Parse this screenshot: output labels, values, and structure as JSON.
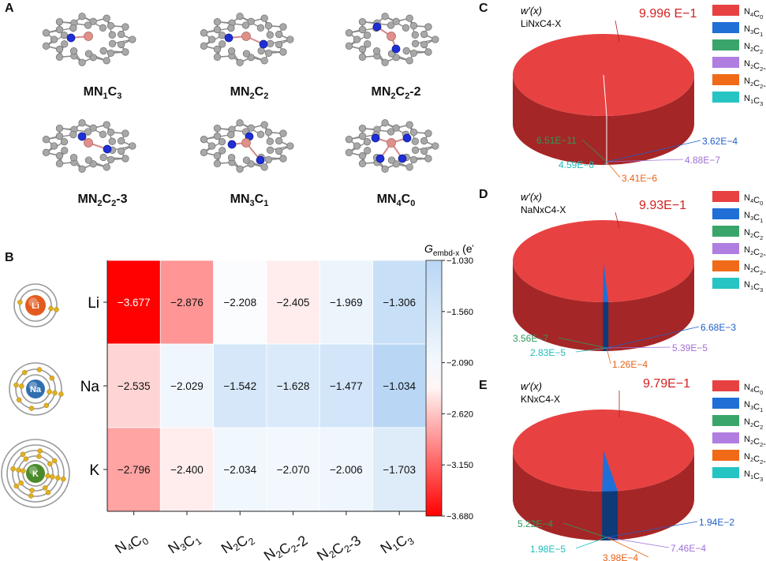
{
  "panels": {
    "a": "A",
    "b": "B",
    "c": "C",
    "d": "D",
    "e": "E"
  },
  "structures": [
    {
      "base": "MN",
      "n": "1",
      "c": "C",
      "cn": "3",
      "suffix": ""
    },
    {
      "base": "MN",
      "n": "2",
      "c": "C",
      "cn": "2",
      "suffix": ""
    },
    {
      "base": "MN",
      "n": "2",
      "c": "C",
      "cn": "2",
      "suffix": "-2"
    },
    {
      "base": "MN",
      "n": "2",
      "c": "C",
      "cn": "2",
      "suffix": "-3"
    },
    {
      "base": "MN",
      "n": "3",
      "c": "C",
      "cn": "1",
      "suffix": ""
    },
    {
      "base": "MN",
      "n": "4",
      "c": "C",
      "cn": "0",
      "suffix": ""
    }
  ],
  "atoms": [
    {
      "symbol": "Li",
      "color": "#e35a1e"
    },
    {
      "symbol": "Na",
      "color": "#2f6fb0"
    },
    {
      "symbol": "K",
      "color": "#4a8a2a"
    }
  ],
  "heatmap": {
    "colorbar_title": "G",
    "colorbar_sub": "embd-x",
    "colorbar_unit": " (eV)",
    "colorbar_ticks": [
      "−1.030",
      "−1.560",
      "−2.090",
      "−2.620",
      "−3.150",
      "−3.680"
    ],
    "rows": [
      "Li",
      "Na",
      "K"
    ],
    "cols": [
      {
        "parts": [
          [
            "N",
            "4"
          ],
          [
            "C",
            "0"
          ]
        ],
        "suffix": ""
      },
      {
        "parts": [
          [
            "N",
            "3"
          ],
          [
            "C",
            "1"
          ]
        ],
        "suffix": ""
      },
      {
        "parts": [
          [
            "N",
            "2"
          ],
          [
            "C",
            "2"
          ]
        ],
        "suffix": ""
      },
      {
        "parts": [
          [
            "N",
            "2"
          ],
          [
            "C",
            "2"
          ]
        ],
        "suffix": "-2"
      },
      {
        "parts": [
          [
            "N",
            "2"
          ],
          [
            "C",
            "2"
          ]
        ],
        "suffix": "-3"
      },
      {
        "parts": [
          [
            "N",
            "1"
          ],
          [
            "C",
            "3"
          ]
        ],
        "suffix": ""
      }
    ],
    "labels": [
      [
        "−3.677",
        "−2.876",
        "−2.208",
        "−2.405",
        "−1.969",
        "−1.306"
      ],
      [
        "−2.535",
        "−2.029",
        "−1.542",
        "−1.628",
        "−1.477",
        "−1.034"
      ],
      [
        "−2.796",
        "−2.400",
        "−2.034",
        "−2.070",
        "−2.006",
        "−1.703"
      ]
    ]
  },
  "pie_title": "w′(x)",
  "legend_items": [
    {
      "parts": [
        [
          "N",
          "4"
        ],
        [
          "C",
          "0"
        ]
      ],
      "suffix": "",
      "color": "#e84141"
    },
    {
      "parts": [
        [
          "N",
          "3"
        ],
        [
          "C",
          "1"
        ]
      ],
      "suffix": "",
      "color": "#1f6fd6"
    },
    {
      "parts": [
        [
          "N",
          "2"
        ],
        [
          "C",
          "2"
        ]
      ],
      "suffix": "",
      "color": "#3aa56a"
    },
    {
      "parts": [
        [
          "N",
          "2"
        ],
        [
          "C",
          "2"
        ]
      ],
      "suffix": "-2",
      "color": "#b07ee0"
    },
    {
      "parts": [
        [
          "N",
          "2"
        ],
        [
          "C",
          "2"
        ]
      ],
      "suffix": "-3",
      "color": "#f06a18"
    },
    {
      "parts": [
        [
          "N",
          "1"
        ],
        [
          "C",
          "3"
        ]
      ],
      "suffix": "",
      "color": "#27c4c4"
    }
  ],
  "chart_data": [
    {
      "type": "heatmap",
      "title": "",
      "rows": [
        "Li",
        "Na",
        "K"
      ],
      "columns": [
        "N4C0",
        "N3C1",
        "N2C2",
        "N2C2-2",
        "N2C2-3",
        "N1C3"
      ],
      "values": [
        [
          -3.677,
          -2.876,
          -2.208,
          -2.405,
          -1.969,
          -1.306
        ],
        [
          -2.535,
          -2.029,
          -1.542,
          -1.628,
          -1.477,
          -1.034
        ],
        [
          -2.796,
          -2.4,
          -2.034,
          -2.07,
          -2.006,
          -1.703
        ]
      ],
      "colorbar_label": "Gembd-x (eV)",
      "colorbar_range": [
        -3.68,
        -1.03
      ]
    },
    {
      "type": "pie",
      "panel": "C",
      "subtitle": "LiNxC4-X",
      "categories": [
        "N4C0",
        "N3C1",
        "N2C2",
        "N2C2-2",
        "N2C2-3",
        "N1C3"
      ],
      "values": [
        0.9996,
        0.000362,
        6.51e-11,
        4.88e-07,
        3.41e-06,
        4.59e-08
      ],
      "labels": [
        "9.996 E−1",
        "3.62E−4",
        "6.51E−11",
        "4.88E−7",
        "3.41E−6",
        "4.59E−8"
      ]
    },
    {
      "type": "pie",
      "panel": "D",
      "subtitle": "NaNxC4-X",
      "categories": [
        "N4C0",
        "N3C1",
        "N2C2",
        "N2C2-2",
        "N2C2-3",
        "N1C3"
      ],
      "values": [
        0.993,
        0.00668,
        3.56e-07,
        5.39e-05,
        0.000126,
        2.83e-05
      ],
      "labels": [
        "9.93E−1",
        "6.68E−3",
        "3.56E−7",
        "5.39E−5",
        "1.26E−4",
        "2.83E−5"
      ]
    },
    {
      "type": "pie",
      "panel": "E",
      "subtitle": "KNxC4-X",
      "categories": [
        "N4C0",
        "N3C1",
        "N2C2",
        "N2C2-2",
        "N2C2-3",
        "N1C3"
      ],
      "values": [
        0.979,
        0.0194,
        0.000522,
        0.000746,
        0.000398,
        1.98e-05
      ],
      "labels": [
        "9.79E−1",
        "1.94E−2",
        "5.22E−4",
        "7.46E−4",
        "3.98E−4",
        "1.98E−5"
      ]
    }
  ]
}
